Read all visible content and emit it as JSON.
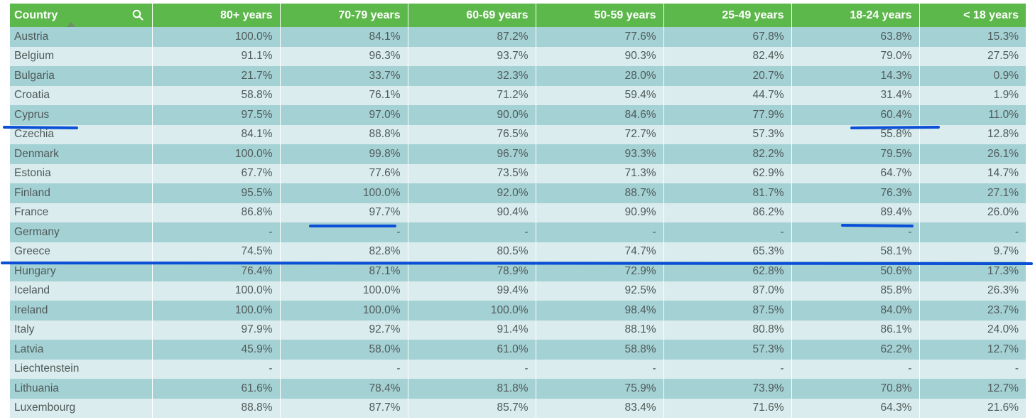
{
  "table": {
    "headers": [
      "Country",
      "80+ years",
      "70-79 years",
      "60-69 years",
      "50-59 years",
      "25-49 years",
      "18-24 years",
      "< 18 years"
    ],
    "rows": [
      {
        "country": "Austria",
        "values": [
          "100.0%",
          "84.1%",
          "87.2%",
          "77.6%",
          "67.8%",
          "63.8%",
          "15.3%"
        ]
      },
      {
        "country": "Belgium",
        "values": [
          "91.1%",
          "96.3%",
          "93.7%",
          "90.3%",
          "82.4%",
          "79.0%",
          "27.5%"
        ]
      },
      {
        "country": "Bulgaria",
        "values": [
          "21.7%",
          "33.7%",
          "32.3%",
          "28.0%",
          "20.7%",
          "14.3%",
          "0.9%"
        ]
      },
      {
        "country": "Croatia",
        "values": [
          "58.8%",
          "76.1%",
          "71.2%",
          "59.4%",
          "44.7%",
          "31.4%",
          "1.9%"
        ]
      },
      {
        "country": "Cyprus",
        "values": [
          "97.5%",
          "97.0%",
          "90.0%",
          "84.6%",
          "77.9%",
          "60.4%",
          "11.0%"
        ]
      },
      {
        "country": "Czechia",
        "values": [
          "84.1%",
          "88.8%",
          "76.5%",
          "72.7%",
          "57.3%",
          "55.8%",
          "12.8%"
        ]
      },
      {
        "country": "Denmark",
        "values": [
          "100.0%",
          "99.8%",
          "96.7%",
          "93.3%",
          "82.2%",
          "79.5%",
          "26.1%"
        ]
      },
      {
        "country": "Estonia",
        "values": [
          "67.7%",
          "77.6%",
          "73.5%",
          "71.3%",
          "62.9%",
          "64.7%",
          "14.7%"
        ]
      },
      {
        "country": "Finland",
        "values": [
          "95.5%",
          "100.0%",
          "92.0%",
          "88.7%",
          "81.7%",
          "76.3%",
          "27.1%"
        ]
      },
      {
        "country": "France",
        "values": [
          "86.8%",
          "97.7%",
          "90.4%",
          "90.9%",
          "86.2%",
          "89.4%",
          "26.0%"
        ]
      },
      {
        "country": "Germany",
        "values": [
          "-",
          "-",
          "-",
          "-",
          "-",
          "-",
          "-"
        ]
      },
      {
        "country": "Greece",
        "values": [
          "74.5%",
          "82.8%",
          "80.5%",
          "74.7%",
          "65.3%",
          "58.1%",
          "9.7%"
        ]
      },
      {
        "country": "Hungary",
        "values": [
          "76.4%",
          "87.1%",
          "78.9%",
          "72.9%",
          "62.8%",
          "50.6%",
          "17.3%"
        ]
      },
      {
        "country": "Iceland",
        "values": [
          "100.0%",
          "100.0%",
          "99.4%",
          "92.5%",
          "87.0%",
          "85.8%",
          "26.3%"
        ]
      },
      {
        "country": "Ireland",
        "values": [
          "100.0%",
          "100.0%",
          "100.0%",
          "98.4%",
          "87.5%",
          "84.0%",
          "23.7%"
        ]
      },
      {
        "country": "Italy",
        "values": [
          "97.9%",
          "92.7%",
          "91.4%",
          "88.1%",
          "80.8%",
          "86.1%",
          "24.0%"
        ]
      },
      {
        "country": "Latvia",
        "values": [
          "45.9%",
          "58.0%",
          "61.0%",
          "58.8%",
          "57.3%",
          "62.2%",
          "12.7%"
        ]
      },
      {
        "country": "Liechtenstein",
        "values": [
          "-",
          "-",
          "-",
          "-",
          "-",
          "-",
          "-"
        ]
      },
      {
        "country": "Lithuania",
        "values": [
          "61.6%",
          "78.4%",
          "81.8%",
          "75.9%",
          "73.9%",
          "70.8%",
          "12.7%"
        ]
      },
      {
        "country": "Luxembourg",
        "values": [
          "88.8%",
          "87.7%",
          "85.7%",
          "83.4%",
          "71.6%",
          "64.3%",
          "21.6%"
        ]
      }
    ]
  },
  "colors": {
    "header_bg": "#5cb84a",
    "row_odd": "#a4d1d4",
    "row_even": "#daeced",
    "annotation_line": "#0a4fd6"
  },
  "icons": {
    "search": "search-icon",
    "sort": "sort-ascending-icon"
  }
}
